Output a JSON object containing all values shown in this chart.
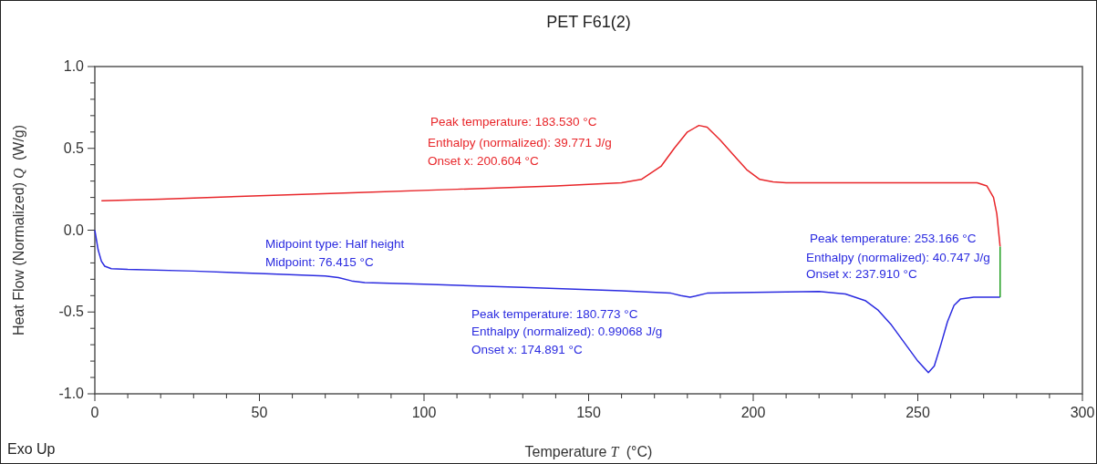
{
  "chart_data": {
    "type": "line",
    "title": "PET F61(2)",
    "xlabel": "Temperature T (°C)",
    "ylabel": "Heat Flow (Normalized) Q (W/g)",
    "xlim": [
      0,
      300
    ],
    "ylim": [
      -1.0,
      1.0
    ],
    "xticks": [
      0,
      {
        "value": 10,
        "label": null
      },
      {
        "value": 20,
        "label": null
      },
      {
        "value": 30,
        "label": null
      },
      {
        "value": 40,
        "label": null
      },
      50,
      {
        "value": 60,
        "label": null
      },
      {
        "value": 70,
        "label": null
      },
      {
        "value": 80,
        "label": null
      },
      {
        "value": 90,
        "label": null
      },
      100,
      {
        "value": 110,
        "label": null
      },
      {
        "value": 120,
        "label": null
      },
      {
        "value": 130,
        "label": null
      },
      {
        "value": 140,
        "label": null
      },
      150,
      {
        "value": 160,
        "label": null
      },
      {
        "value": 170,
        "label": null
      },
      {
        "value": 180,
        "label": null
      },
      {
        "value": 190,
        "label": null
      },
      200,
      {
        "value": 210,
        "label": null
      },
      {
        "value": 220,
        "label": null
      },
      {
        "value": 230,
        "label": null
      },
      {
        "value": 240,
        "label": null
      },
      250,
      {
        "value": 260,
        "label": null
      },
      {
        "value": 270,
        "label": null
      },
      {
        "value": 280,
        "label": null
      },
      {
        "value": 290,
        "label": null
      },
      300
    ],
    "yticks": [
      {
        "value": -1.0,
        "label": "-1.0"
      },
      {
        "value": -0.9,
        "label": null
      },
      {
        "value": -0.8,
        "label": null
      },
      {
        "value": -0.7,
        "label": null
      },
      {
        "value": -0.6,
        "label": null
      },
      {
        "value": -0.5,
        "label": "-0.5"
      },
      {
        "value": -0.4,
        "label": null
      },
      {
        "value": -0.3,
        "label": null
      },
      {
        "value": -0.2,
        "label": null
      },
      {
        "value": -0.1,
        "label": null
      },
      {
        "value": 0,
        "label": "0.0"
      },
      {
        "value": 0.1,
        "label": null
      },
      {
        "value": 0.2,
        "label": null
      },
      {
        "value": 0.3,
        "label": null
      },
      {
        "value": 0.4,
        "label": null
      },
      {
        "value": 0.5,
        "label": "0.5"
      },
      {
        "value": 0.6,
        "label": null
      },
      {
        "value": 0.7,
        "label": null
      },
      {
        "value": 0.8,
        "label": null
      },
      {
        "value": 0.9,
        "label": null
      },
      {
        "value": 1.0,
        "label": "1.0"
      }
    ],
    "grid": false,
    "marker": "none",
    "line_style": "solid",
    "series": [
      {
        "color": "#e8262a",
        "x": [
          2,
          20,
          50,
          80,
          110,
          140,
          160,
          166,
          172,
          176,
          180,
          183.5,
          186,
          190,
          194,
          198,
          202,
          206,
          210,
          230,
          260,
          268,
          271,
          273,
          274,
          275
        ],
        "values": [
          0.18,
          0.19,
          0.21,
          0.23,
          0.25,
          0.27,
          0.29,
          0.31,
          0.39,
          0.5,
          0.6,
          0.64,
          0.63,
          0.55,
          0.46,
          0.37,
          0.31,
          0.295,
          0.29,
          0.29,
          0.29,
          0.29,
          0.27,
          0.2,
          0.1,
          -0.1
        ]
      },
      {
        "color": "#2b2be0",
        "x": [
          0,
          1,
          2,
          3,
          5,
          10,
          30,
          50,
          70,
          74,
          78,
          82,
          100,
          130,
          160,
          175,
          178,
          180.8,
          183,
          186,
          200,
          220,
          228,
          234,
          238,
          242,
          246,
          250,
          253.2,
          255,
          257,
          259,
          261,
          263,
          267,
          275
        ],
        "values": [
          0.0,
          -0.12,
          -0.19,
          -0.22,
          -0.235,
          -0.24,
          -0.25,
          -0.265,
          -0.28,
          -0.29,
          -0.31,
          -0.32,
          -0.33,
          -0.35,
          -0.37,
          -0.385,
          -0.4,
          -0.41,
          -0.4,
          -0.385,
          -0.38,
          -0.375,
          -0.39,
          -0.43,
          -0.49,
          -0.58,
          -0.69,
          -0.8,
          -0.87,
          -0.83,
          -0.7,
          -0.56,
          -0.46,
          -0.42,
          -0.41,
          -0.41
        ]
      },
      {
        "color": "#22a022",
        "x": [
          275,
          275
        ],
        "values": [
          -0.1,
          -0.41
        ]
      }
    ],
    "annotations": [
      "Peak temperature: 183.530 °C",
      "Enthalpy (normalized): 39.771 J/g",
      "Onset x: 200.604 °C",
      "Midpoint type: Half height",
      "Midpoint: 76.415 °C",
      "Peak temperature: 180.773 °C",
      "Enthalpy (normalized): 0.99068 J/g",
      "Onset x: 174.891 °C",
      "Peak temperature: 253.166 °C",
      "Enthalpy (normalized): 40.747 J/g",
      "Onset x: 237.910 °C",
      "Exo Up"
    ]
  }
}
